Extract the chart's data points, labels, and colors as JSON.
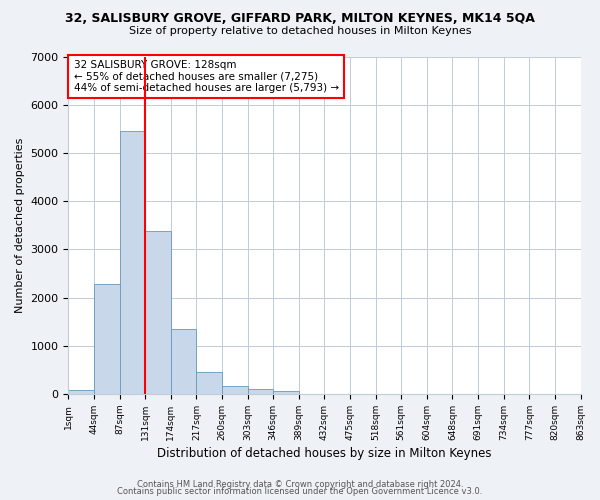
{
  "title": "32, SALISBURY GROVE, GIFFARD PARK, MILTON KEYNES, MK14 5QA",
  "subtitle": "Size of property relative to detached houses in Milton Keynes",
  "xlabel": "Distribution of detached houses by size in Milton Keynes",
  "ylabel": "Number of detached properties",
  "bar_color": "#c8d8ea",
  "bar_edge_color": "#6699bb",
  "vline_color": "red",
  "vline_bin_index": 3,
  "annotation_line1": "32 SALISBURY GROVE: 128sqm",
  "annotation_line2": "← 55% of detached houses are smaller (7,275)",
  "annotation_line3": "44% of semi-detached houses are larger (5,793) →",
  "bin_labels": [
    "1sqm",
    "44sqm",
    "87sqm",
    "131sqm",
    "174sqm",
    "217sqm",
    "260sqm",
    "303sqm",
    "346sqm",
    "389sqm",
    "432sqm",
    "475sqm",
    "518sqm",
    "561sqm",
    "604sqm",
    "648sqm",
    "691sqm",
    "734sqm",
    "777sqm",
    "820sqm",
    "863sqm"
  ],
  "bar_heights": [
    75,
    2290,
    5450,
    3380,
    1340,
    450,
    170,
    100,
    60,
    0,
    0,
    0,
    0,
    0,
    0,
    0,
    0,
    0,
    0,
    0
  ],
  "ylim": [
    0,
    7000
  ],
  "yticks": [
    0,
    1000,
    2000,
    3000,
    4000,
    5000,
    6000,
    7000
  ],
  "footer1": "Contains HM Land Registry data © Crown copyright and database right 2024.",
  "footer2": "Contains public sector information licensed under the Open Government Licence v3.0.",
  "bg_color": "#eef2f6",
  "plot_bg_color": "#ffffff",
  "grid_color": "#c0ccd8"
}
